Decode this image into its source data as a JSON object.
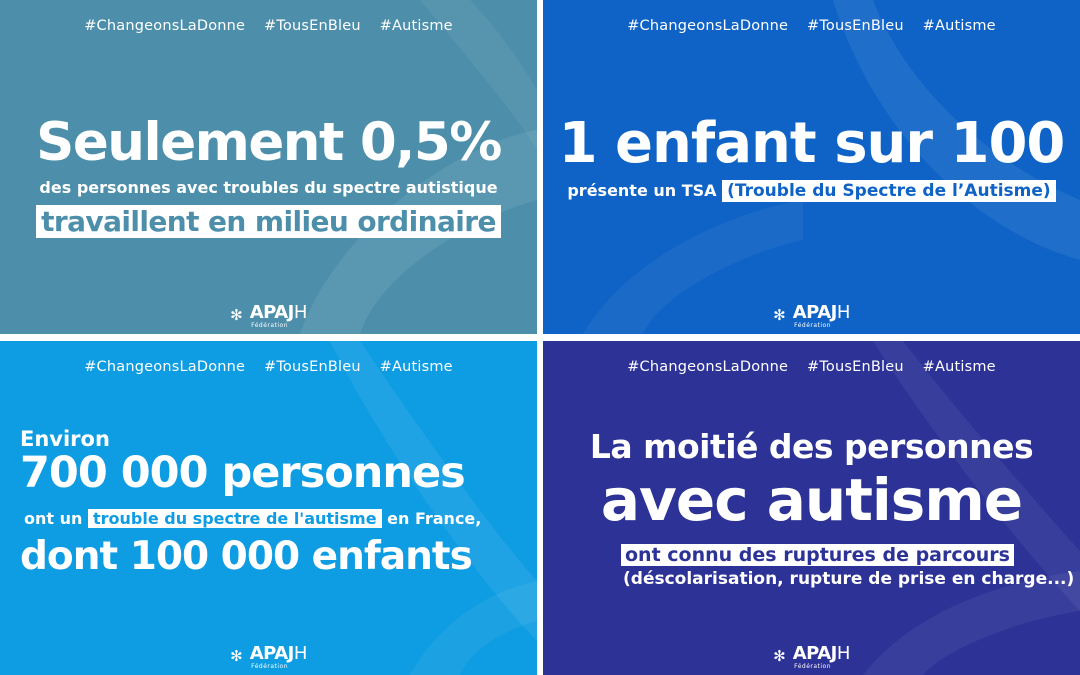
{
  "hashtags": [
    "#ChangeonsLaDonne",
    "#TousEnBleu",
    "#Autisme"
  ],
  "logo": {
    "main": "APAJ",
    "h": "H",
    "sub": "Fédération",
    "icon": "snowflake-icon"
  },
  "colors": {
    "panel1": "#4d8fab",
    "panel2": "#0f63c6",
    "panel3": "#0e9de2",
    "panel4": "#2c3296",
    "text": "#ffffff"
  },
  "panel1": {
    "big": "Seulement 0,5%",
    "line2": "des personnes avec troubles du spectre autistique",
    "highlight": "travaillent en milieu ordinaire"
  },
  "panel2": {
    "big": "1 enfant sur 100",
    "line2": "présente un TSA",
    "highlight": "(Trouble du Spectre de l’Autisme)"
  },
  "panel3": {
    "line1": "Environ",
    "line2": "700 000 personnes",
    "line3_pre": "ont un",
    "line3_highlight": "trouble du spectre de l'autisme",
    "line3_post": "en France,",
    "line4": "dont 100 000 enfants"
  },
  "panel4": {
    "line1": "La moitié des personnes",
    "line2": "avec autisme",
    "highlight": "ont connu des ruptures de parcours",
    "line4": "(déscolarisation, rupture de prise en charge...)"
  }
}
